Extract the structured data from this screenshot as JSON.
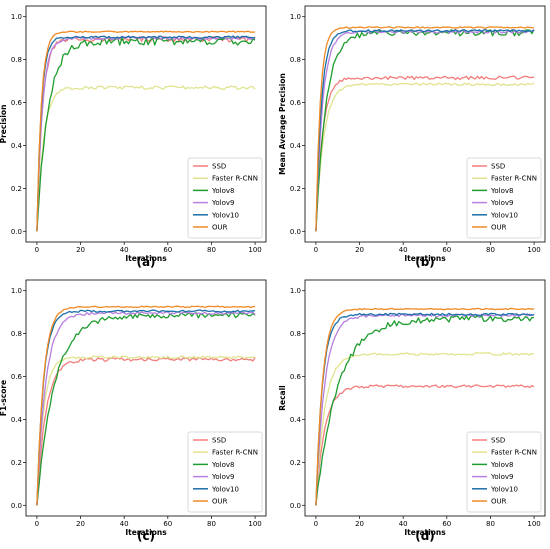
{
  "series_styles": [
    {
      "name": "SSD",
      "color": "#f47c7c"
    },
    {
      "name": "Faster R-CNN",
      "color": "#e0e48f"
    },
    {
      "name": "Yolov8",
      "color": "#1e9c2e"
    },
    {
      "name": "Yolov9",
      "color": "#b77fe0"
    },
    {
      "name": "Yolov10",
      "color": "#1a6fa8"
    },
    {
      "name": "OUR",
      "color": "#f08a24"
    }
  ],
  "chart_data": [
    {
      "type": "line",
      "panel_label": "(a)",
      "xlabel": "Iterations",
      "ylabel": "Precision",
      "xlim": [
        -5,
        105
      ],
      "ylim": [
        -0.05,
        1.05
      ],
      "xticks": [
        0,
        20,
        40,
        60,
        80,
        100
      ],
      "yticks": [
        0.0,
        0.2,
        0.4,
        0.6,
        0.8,
        1.0
      ],
      "legend_position": "lower-right",
      "series": [
        {
          "name": "SSD",
          "start": 0.0,
          "plateau": 0.895,
          "rise": 2.5,
          "noise": 0.012
        },
        {
          "name": "Faster R-CNN",
          "start": 0.0,
          "plateau": 0.67,
          "rise": 3.0,
          "noise": 0.008
        },
        {
          "name": "Yolov8",
          "start": 0.0,
          "plateau": 0.885,
          "rise": 5.0,
          "noise": 0.018
        },
        {
          "name": "Yolov9",
          "start": 0.0,
          "plateau": 0.9,
          "rise": 2.5,
          "noise": 0.006
        },
        {
          "name": "Yolov10",
          "start": 0.0,
          "plateau": 0.905,
          "rise": 2.0,
          "noise": 0.005
        },
        {
          "name": "OUR",
          "start": 0.0,
          "plateau": 0.93,
          "rise": 2.0,
          "noise": 0.003
        }
      ]
    },
    {
      "type": "line",
      "panel_label": "(b)",
      "xlabel": "Iterations",
      "ylabel": "Mean Average Precision",
      "xlim": [
        -5,
        105
      ],
      "ylim": [
        -0.05,
        1.05
      ],
      "xticks": [
        0,
        20,
        40,
        60,
        80,
        100
      ],
      "yticks": [
        0.0,
        0.2,
        0.4,
        0.6,
        0.8,
        1.0
      ],
      "legend_position": "lower-right",
      "series": [
        {
          "name": "SSD",
          "start": 0.0,
          "plateau": 0.715,
          "rise": 3.0,
          "noise": 0.008
        },
        {
          "name": "Faster R-CNN",
          "start": 0.0,
          "plateau": 0.685,
          "rise": 3.5,
          "noise": 0.006
        },
        {
          "name": "Yolov8",
          "start": 0.0,
          "plateau": 0.925,
          "rise": 4.5,
          "noise": 0.014
        },
        {
          "name": "Yolov9",
          "start": 0.0,
          "plateau": 0.93,
          "rise": 3.0,
          "noise": 0.006
        },
        {
          "name": "Yolov10",
          "start": 0.0,
          "plateau": 0.935,
          "rise": 2.5,
          "noise": 0.005
        },
        {
          "name": "OUR",
          "start": 0.0,
          "plateau": 0.95,
          "rise": 2.0,
          "noise": 0.003
        }
      ]
    },
    {
      "type": "line",
      "panel_label": "(c)",
      "xlabel": "Iterations",
      "ylabel": "F1-score",
      "xlim": [
        -5,
        105
      ],
      "ylim": [
        -0.05,
        1.05
      ],
      "xticks": [
        0,
        20,
        40,
        60,
        80,
        100
      ],
      "yticks": [
        0.0,
        0.2,
        0.4,
        0.6,
        0.8,
        1.0
      ],
      "legend_position": "lower-right",
      "series": [
        {
          "name": "SSD",
          "start": 0.0,
          "plateau": 0.68,
          "rise": 4.0,
          "noise": 0.008
        },
        {
          "name": "Faster R-CNN",
          "start": 0.0,
          "plateau": 0.69,
          "rise": 3.0,
          "noise": 0.006
        },
        {
          "name": "Yolov8",
          "start": 0.0,
          "plateau": 0.885,
          "rise": 8.0,
          "noise": 0.012
        },
        {
          "name": "Yolov9",
          "start": 0.0,
          "plateau": 0.895,
          "rise": 4.0,
          "noise": 0.006
        },
        {
          "name": "Yolov10",
          "start": 0.0,
          "plateau": 0.905,
          "rise": 3.0,
          "noise": 0.005
        },
        {
          "name": "OUR",
          "start": 0.0,
          "plateau": 0.925,
          "rise": 3.0,
          "noise": 0.003
        }
      ]
    },
    {
      "type": "line",
      "panel_label": "(d)",
      "xlabel": "Iterations",
      "ylabel": "Recall",
      "xlim": [
        -5,
        105
      ],
      "ylim": [
        -0.05,
        1.05
      ],
      "xticks": [
        0,
        20,
        40,
        60,
        80,
        100
      ],
      "yticks": [
        0.0,
        0.2,
        0.4,
        0.6,
        0.8,
        1.0
      ],
      "legend_position": "lower-right",
      "series": [
        {
          "name": "SSD",
          "start": 0.0,
          "plateau": 0.555,
          "rise": 4.0,
          "noise": 0.006
        },
        {
          "name": "Faster R-CNN",
          "start": 0.0,
          "plateau": 0.705,
          "rise": 4.0,
          "noise": 0.006
        },
        {
          "name": "Yolov8",
          "start": 0.0,
          "plateau": 0.87,
          "rise": 10.0,
          "noise": 0.014
        },
        {
          "name": "Yolov9",
          "start": 0.0,
          "plateau": 0.885,
          "rise": 4.0,
          "noise": 0.006
        },
        {
          "name": "Yolov10",
          "start": 0.0,
          "plateau": 0.89,
          "rise": 3.0,
          "noise": 0.005
        },
        {
          "name": "OUR",
          "start": 0.0,
          "plateau": 0.915,
          "rise": 3.0,
          "noise": 0.003
        }
      ]
    }
  ]
}
